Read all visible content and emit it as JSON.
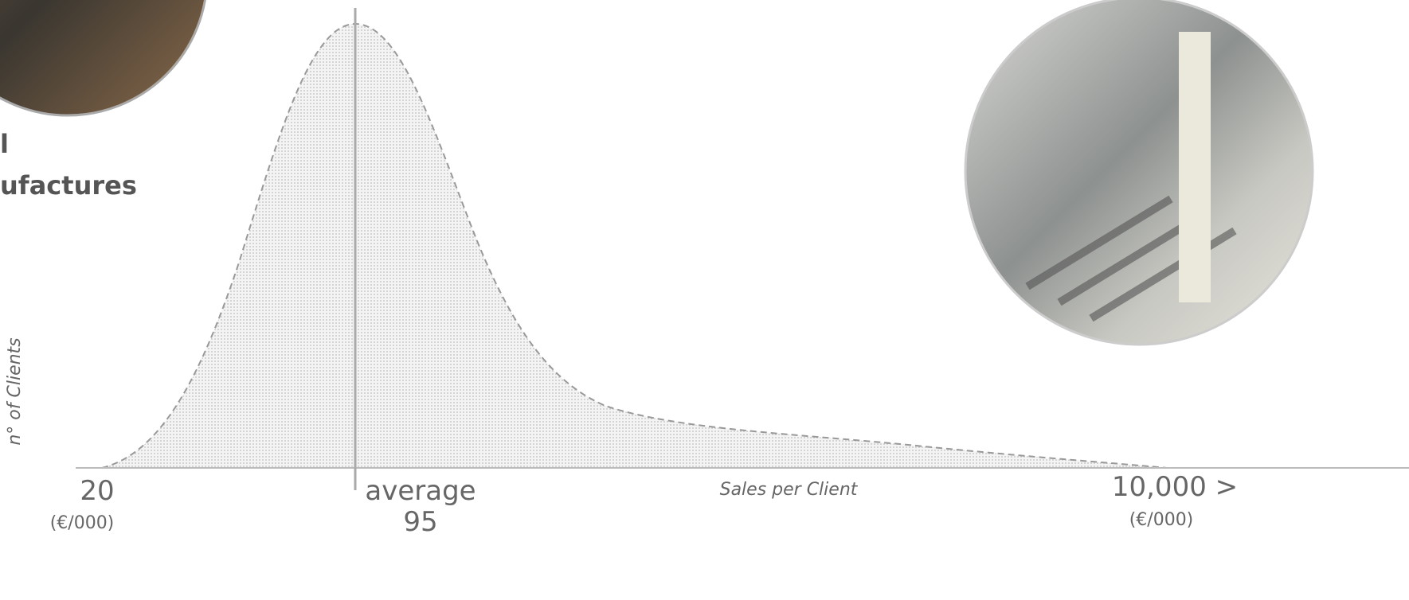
{
  "header": {
    "line1": "l",
    "line2": "ufactures"
  },
  "axis": {
    "y_label": "n° of Clients",
    "x_label": "Sales per Client",
    "min": "20",
    "min_unit": "(€/000)",
    "max": "10,000 >",
    "max_unit": "(€/000)",
    "marker_label": "average",
    "marker_value": "95"
  }
}
